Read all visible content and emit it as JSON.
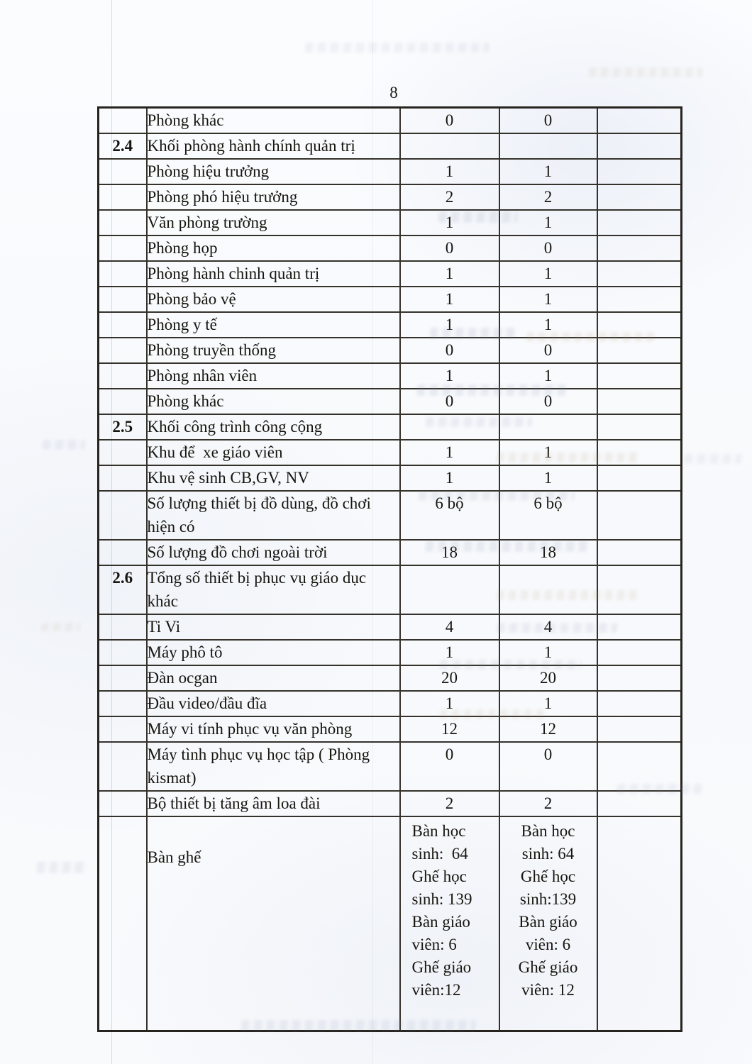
{
  "page": {
    "number": "8"
  },
  "table": {
    "rows": [
      {
        "num": "",
        "label": "Phòng khác",
        "v1": "0",
        "v2": "0"
      },
      {
        "num": "2.4",
        "label": "Khối phòng hành chính quản trị",
        "v1": "",
        "v2": ""
      },
      {
        "num": "",
        "label": "Phòng hiệu trưởng",
        "v1": "1",
        "v2": "1"
      },
      {
        "num": "",
        "label": "Phòng phó hiệu trưởng",
        "v1": "2",
        "v2": "2"
      },
      {
        "num": "",
        "label": "Văn phòng trường",
        "v1": "1",
        "v2": "1"
      },
      {
        "num": "",
        "label": "Phòng họp",
        "v1": "0",
        "v2": "0"
      },
      {
        "num": "",
        "label": "Phòng hành chinh quản trị",
        "v1": "1",
        "v2": "1"
      },
      {
        "num": "",
        "label": "Phòng bảo vệ",
        "v1": "1",
        "v2": "1"
      },
      {
        "num": "",
        "label": "Phòng y tế",
        "v1": "1",
        "v2": "1"
      },
      {
        "num": "",
        "label": "Phòng truyền thống",
        "v1": "0",
        "v2": "0"
      },
      {
        "num": "",
        "label": "Phòng nhân viên",
        "v1": "1",
        "v2": "1"
      },
      {
        "num": "",
        "label": "Phòng khác",
        "v1": "0",
        "v2": "0"
      },
      {
        "num": "2.5",
        "label": "Khối công trình công cộng",
        "v1": "",
        "v2": ""
      },
      {
        "num": "",
        "label": "Khu để  xe giáo viên",
        "v1": "1",
        "v2": "1"
      },
      {
        "num": "",
        "label": "Khu vệ sinh CB,GV, NV",
        "v1": "1",
        "v2": "1"
      },
      {
        "num": "",
        "label_lines": [
          "Số lượng thiết bị đồ dùng, đồ chơi",
          "hiện có"
        ],
        "v1": "6 bộ",
        "v2": "6 bộ"
      },
      {
        "num": "",
        "label": "Số lượng đồ chơi ngoài trời",
        "v1": "18",
        "v2": "18"
      },
      {
        "num": "2.6",
        "label_lines": [
          "Tổng số thiết bị phục vụ giáo dục",
          "khác"
        ],
        "v1": "",
        "v2": ""
      },
      {
        "num": "",
        "label": "Ti Vi",
        "v1": "4",
        "v2": "4"
      },
      {
        "num": "",
        "label": "Máy phô tô",
        "v1": "1",
        "v2": "1"
      },
      {
        "num": "",
        "label": "Đàn ocgan",
        "v1": "20",
        "v2": "20"
      },
      {
        "num": "",
        "label": "Đầu video/đầu đĩa",
        "v1": "1",
        "v2": "1"
      },
      {
        "num": "",
        "label": "Máy vi tính phục vụ văn phòng",
        "v1": "12",
        "v2": "12"
      },
      {
        "num": "",
        "label_lines": [
          "Máy tình phục vụ học tập ( Phòng",
          "kismat)"
        ],
        "v1": "0",
        "v2": "0"
      },
      {
        "num": "",
        "label": "Bộ thiết bị tăng âm loa đài",
        "v1": "2",
        "v2": "2"
      },
      {
        "num": "",
        "label": "Bàn ghế",
        "v1_lines": [
          "Bàn học",
          "sinh:  64",
          "Ghế học",
          "sinh: 139",
          "Bàn giáo",
          "viên: 6",
          "Ghế giáo",
          "viên:12"
        ],
        "v2_lines": [
          "Bàn học",
          "sinh: 64",
          "Ghế học",
          "sinh:139",
          "Bàn giáo",
          "viên: 6",
          "Ghế giáo",
          "viên: 12"
        ]
      }
    ]
  }
}
